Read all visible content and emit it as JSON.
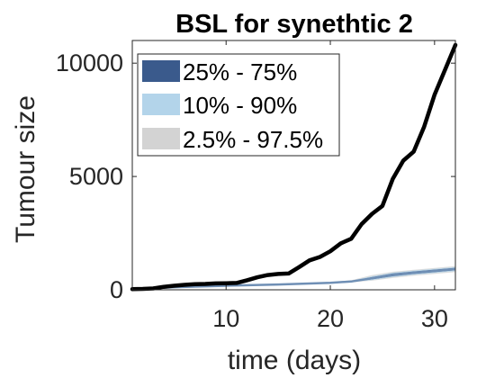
{
  "chart_data": {
    "type": "line",
    "title": "BSL for synethtic 2",
    "xlabel": "time (days)",
    "ylabel": "Tumour size",
    "xlim": [
      1,
      32
    ],
    "ylim": [
      0,
      11000
    ],
    "xticks": [
      10,
      20,
      30
    ],
    "yticks": [
      0,
      5000,
      10000
    ],
    "grid": false,
    "legend_position": "top-left",
    "legend": [
      {
        "label": "25% - 75%",
        "color": "#3a5a8c"
      },
      {
        "label": "10% - 90%",
        "color": "#b3d4ea"
      },
      {
        "label": "2.5% - 97.5%",
        "color": "#d3d3d3"
      }
    ],
    "series": [
      {
        "type": "line",
        "color": "#000000",
        "x": [
          1,
          2,
          3,
          4,
          5,
          6,
          7,
          8,
          9,
          10,
          11,
          12,
          13,
          14,
          15,
          16,
          17,
          18,
          19,
          20,
          21,
          22,
          23,
          24,
          25,
          26,
          27,
          28,
          29,
          30,
          31,
          32
        ],
        "y": [
          30,
          40,
          60,
          130,
          180,
          220,
          250,
          260,
          280,
          290,
          300,
          420,
          550,
          650,
          700,
          720,
          1000,
          1300,
          1450,
          1700,
          2050,
          2250,
          2900,
          3350,
          3700,
          4900,
          5700,
          6100,
          7200,
          8600,
          9700,
          10800
        ]
      }
    ],
    "bands": [
      {
        "name_ref": "2.5% - 97.5%",
        "color": "#d3d3d3",
        "x": [
          1,
          5,
          10,
          15,
          20,
          22,
          24,
          26,
          28,
          30,
          32
        ],
        "lower": [
          20,
          80,
          140,
          200,
          280,
          330,
          400,
          520,
          620,
          700,
          780
        ],
        "upper": [
          40,
          150,
          220,
          270,
          340,
          420,
          650,
          800,
          880,
          960,
          1050
        ]
      },
      {
        "name_ref": "10% - 90%",
        "color": "#b3d4ea",
        "x": [
          1,
          5,
          10,
          15,
          20,
          22,
          24,
          26,
          28,
          30,
          32
        ],
        "lower": [
          22,
          90,
          150,
          210,
          290,
          340,
          430,
          560,
          660,
          740,
          820
        ],
        "upper": [
          38,
          140,
          210,
          260,
          330,
          400,
          600,
          760,
          850,
          930,
          1010
        ]
      },
      {
        "name_ref": "25% - 75%",
        "color": "#3a5a8c",
        "x": [
          1,
          5,
          10,
          15,
          20,
          22,
          24,
          26,
          28,
          30,
          32
        ],
        "lower": [
          25,
          100,
          165,
          225,
          300,
          350,
          460,
          600,
          700,
          780,
          860
        ],
        "upper": [
          35,
          130,
          195,
          245,
          320,
          380,
          560,
          720,
          810,
          890,
          970
        ]
      }
    ],
    "median_line": {
      "color": "#6f8fb5",
      "x": [
        1,
        5,
        10,
        15,
        20,
        22,
        24,
        26,
        28,
        30,
        32
      ],
      "y": [
        30,
        115,
        180,
        235,
        310,
        365,
        510,
        660,
        755,
        835,
        915
      ]
    }
  }
}
